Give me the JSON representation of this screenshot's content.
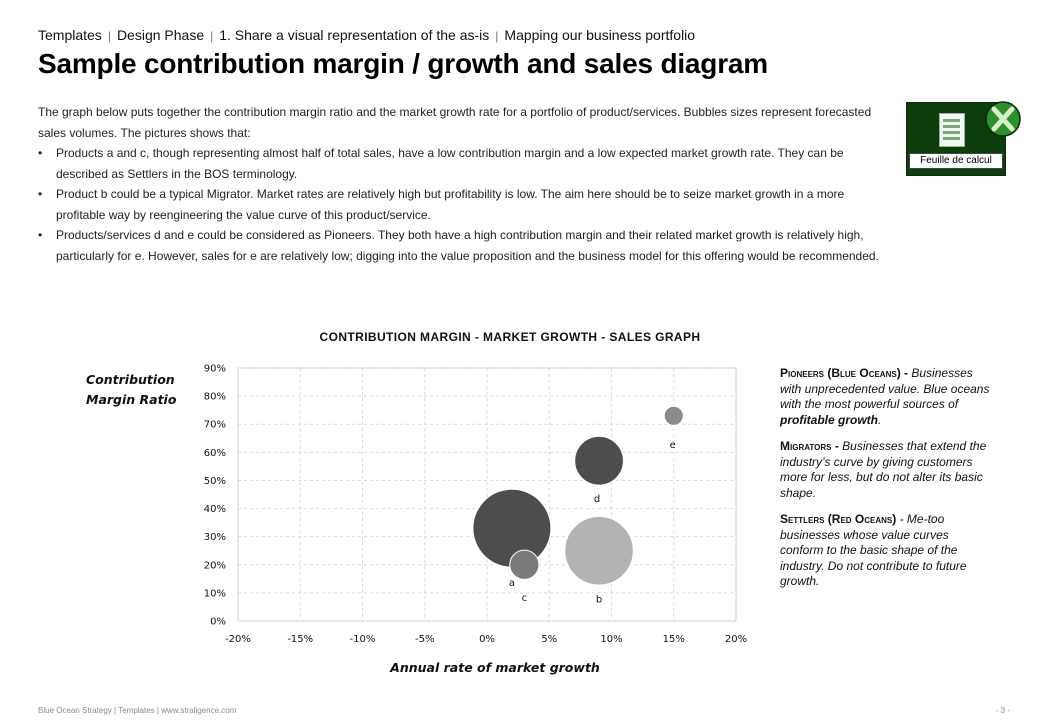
{
  "breadcrumb": {
    "items": [
      "Templates",
      "Design Phase",
      "1. Share a visual representation of the as-is",
      "Mapping our business portfolio"
    ],
    "separator": "|"
  },
  "title": "Sample contribution margin / growth and sales diagram",
  "intro": {
    "paragraph": "The graph below puts together the contribution margin ratio and the market growth rate for a portfolio of product/services. Bubbles sizes represent forecasted sales volumes. The pictures shows that:",
    "bullets": [
      "Products a and c, though representing almost half of total sales, have a low contribution margin and a low expected market growth rate. They can be described as Settlers in the BOS terminology.",
      "Product b could be a typical Migrator. Market rates are relatively high but profitability is low. The aim here should be to seize market growth in a more profitable way by reengineering the value curve of this product/service.",
      "Products/services d and e could be considered as Pioneers. They both have a high contribution margin and their related market growth is relatively high, particularly for e. However, sales for e are relatively low; digging into the value proposition and the business model for this offering would be recommended."
    ]
  },
  "excel_widget": {
    "label": "Feuille de calcul",
    "icon": "spreadsheet-icon",
    "background_color": "#0d3d0d",
    "accent_color": "#3aa83a"
  },
  "chart_data": {
    "type": "scatter",
    "subtype": "bubble",
    "title": "CONTRIBUTION MARGIN - MARKET GROWTH - SALES GRAPH",
    "xlabel": "Annual rate of market growth",
    "ylabel": "Contribution Margin Ratio",
    "xlim": [
      -0.2,
      0.2
    ],
    "ylim": [
      0,
      0.9
    ],
    "xticks": [
      -0.2,
      -0.15,
      -0.1,
      -0.05,
      0,
      0.05,
      0.1,
      0.15,
      0.2
    ],
    "xtick_labels": [
      "-20%",
      "-15%",
      "-10%",
      "-5%",
      "0%",
      "5%",
      "10%",
      "15%",
      "20%"
    ],
    "yticks": [
      0,
      0.1,
      0.2,
      0.3,
      0.4,
      0.5,
      0.6,
      0.7,
      0.8,
      0.9
    ],
    "ytick_labels": [
      "0%",
      "10%",
      "20%",
      "30%",
      "40%",
      "50%",
      "60%",
      "70%",
      "80%",
      "90%"
    ],
    "grid": true,
    "bubble_size": "forecasted sales volume (relative)",
    "points": [
      {
        "label": "a",
        "x": 0.02,
        "y": 0.33,
        "size": 1.0,
        "color": "#4d4d4d"
      },
      {
        "label": "b",
        "x": 0.09,
        "y": 0.25,
        "size": 0.77,
        "color": "#b3b3b3"
      },
      {
        "label": "c",
        "x": 0.03,
        "y": 0.2,
        "size": 0.14,
        "color": "#7a7a7a"
      },
      {
        "label": "d",
        "x": 0.09,
        "y": 0.57,
        "size": 0.39,
        "color": "#4d4d4d"
      },
      {
        "label": "e",
        "x": 0.15,
        "y": 0.73,
        "size": 0.06,
        "color": "#8c8c8c"
      }
    ]
  },
  "legend_notes": {
    "pioneers": {
      "title": "Pioneers",
      "paren": "(Blue Oceans) -",
      "desc": "Businesses with unprecedented value. Blue oceans with the most powerful sources of",
      "emph": "profitable growth",
      "end": "."
    },
    "migrators": {
      "title": "Migrators -",
      "desc": "Businesses that extend the industry’s curve by giving customers more for less, but do not alter its basic shape."
    },
    "settlers": {
      "title": "Settlers",
      "paren": "(Red Oceans)",
      "desc": "- Me-too businesses whose value curves conform to the basic shape of the industry. Do not contribute to future growth."
    }
  },
  "footer": {
    "left": [
      "Blue Ocean Strategy",
      "Templates",
      "www.straligence.com"
    ],
    "right": "- 3 -"
  }
}
